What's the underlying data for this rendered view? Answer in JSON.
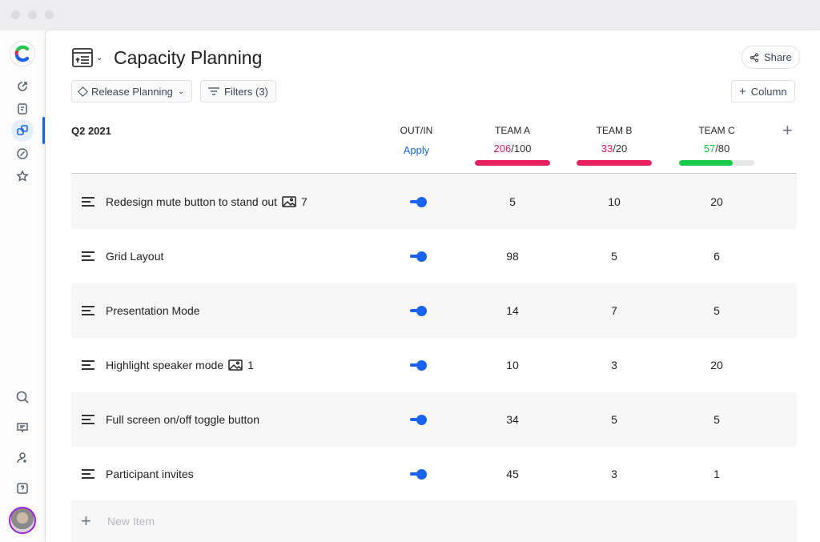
{
  "page": {
    "title": "Capacity Planning",
    "view_selector": "Release Planning",
    "filters": "Filters (3)",
    "share": "Share",
    "add_column": "Column",
    "new_item": "New Item"
  },
  "table": {
    "period": "Q2 2021",
    "outin_header": "OUT/IN",
    "apply": "Apply",
    "teams": [
      {
        "name": "TEAM A",
        "used": "206",
        "capacity": "/100",
        "used_color": "#e8215f",
        "fill_percent": 100
      },
      {
        "name": "TEAM B",
        "used": "33",
        "capacity": "/20",
        "used_color": "#e8215f",
        "fill_percent": 100
      },
      {
        "name": "TEAM C",
        "used": "57",
        "capacity": "/80",
        "used_color": "#19c94a",
        "fill_percent": 71
      }
    ],
    "rows": [
      {
        "name": "Redesign mute button to stand out",
        "images": "7",
        "in": true,
        "a": "5",
        "b": "10",
        "c": "20"
      },
      {
        "name": "Grid Layout",
        "in": true,
        "a": "98",
        "b": "5",
        "c": "6"
      },
      {
        "name": "Presentation Mode",
        "in": true,
        "a": "14",
        "b": "7",
        "c": "5"
      },
      {
        "name": "Highlight speaker mode",
        "images": "1",
        "in": true,
        "a": "10",
        "b": "3",
        "c": "20"
      },
      {
        "name": "Full screen on/off toggle button",
        "in": true,
        "a": "34",
        "b": "5",
        "c": "5"
      },
      {
        "name": "Participant invites",
        "in": true,
        "a": "45",
        "b": "3",
        "c": "1"
      }
    ]
  }
}
